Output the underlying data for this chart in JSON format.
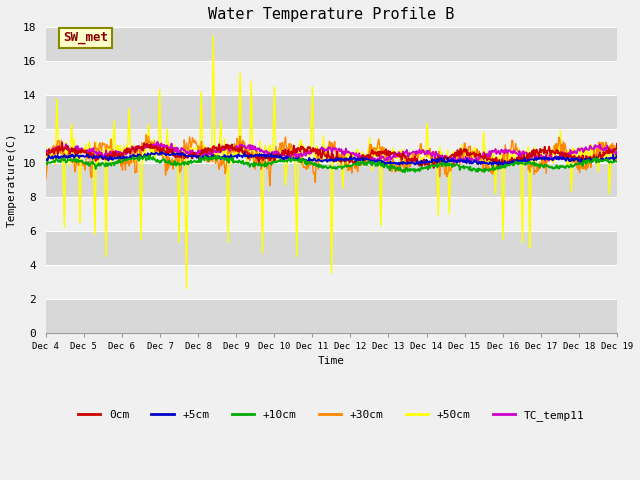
{
  "title": "Water Temperature Profile B",
  "xlabel": "Time",
  "ylabel": "Temperature(C)",
  "ylim": [
    0,
    18
  ],
  "yticks": [
    0,
    2,
    4,
    6,
    8,
    10,
    12,
    14,
    16,
    18
  ],
  "xtick_labels": [
    "Dec 4",
    "Dec 5",
    "Dec 6",
    "Dec 7",
    "Dec 8",
    "Dec 9",
    "Dec 10",
    "Dec 11",
    "Dec 12",
    "Dec 13",
    "Dec 14",
    "Dec 15",
    "Dec 16",
    "Dec 17",
    "Dec 18",
    "Dec 19"
  ],
  "fig_bg": "#f0f0f0",
  "plot_bg": "#e8e8e8",
  "band_light": "#f0f0f0",
  "band_dark": "#d8d8d8",
  "grid_color": "#c8c8c8",
  "series_colors": {
    "0cm": "#cc0000",
    "+5cm": "#0000cc",
    "+10cm": "#00aa00",
    "+30cm": "#ff8800",
    "+50cm": "#ffff00",
    "TC_temp11": "#cc00cc"
  },
  "annotation_text": "SW_met",
  "annotation_color": "#880000",
  "annotation_bg": "#ffffcc",
  "annotation_border": "#888800",
  "title_fontsize": 11,
  "axis_fontsize": 8,
  "tick_fontsize": 8
}
